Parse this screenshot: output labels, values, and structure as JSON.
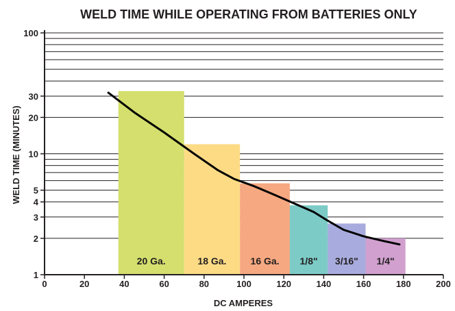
{
  "chart_data": {
    "type": "bar",
    "title": "WELD TIME WHILE OPERATING FROM BATTERIES ONLY",
    "xlabel": "DC AMPERES",
    "ylabel": "WELD TIME (MINUTES)",
    "x_scale": "linear",
    "y_scale": "log",
    "xlim": [
      0,
      200
    ],
    "ylim": [
      1,
      100
    ],
    "x_ticks": [
      0,
      20,
      40,
      60,
      80,
      100,
      120,
      140,
      160,
      180,
      200
    ],
    "y_ticks": [
      1,
      2,
      3,
      4,
      5,
      10,
      20,
      30,
      100
    ],
    "y_gridlines": [
      2,
      3,
      4,
      5,
      6,
      7,
      8,
      9,
      10,
      20,
      30,
      40,
      50,
      60,
      70,
      80,
      90,
      100
    ],
    "bars": [
      {
        "label": "20 Ga.",
        "x_start": 37,
        "x_end": 70,
        "value": 33,
        "color": "#d4df6e"
      },
      {
        "label": "18 Ga.",
        "x_start": 70,
        "x_end": 98,
        "value": 12,
        "color": "#fddb85"
      },
      {
        "label": "16 Ga.",
        "x_start": 98,
        "x_end": 123,
        "value": 5.7,
        "color": "#f6a880"
      },
      {
        "label": "1/8\"",
        "x_start": 123,
        "x_end": 142,
        "value": 3.75,
        "color": "#7ccbc6"
      },
      {
        "label": "3/16\"",
        "x_start": 142,
        "x_end": 161,
        "value": 2.65,
        "color": "#a8abdd"
      },
      {
        "label": "1/4\"",
        "x_start": 161,
        "x_end": 181,
        "value": 2.0,
        "color": "#d1a0cf"
      }
    ],
    "series": [
      {
        "type": "line",
        "points": [
          {
            "x": 32,
            "y": 32
          },
          {
            "x": 45,
            "y": 22
          },
          {
            "x": 60,
            "y": 15
          },
          {
            "x": 75,
            "y": 10
          },
          {
            "x": 87,
            "y": 7.3
          },
          {
            "x": 95,
            "y": 6.2
          },
          {
            "x": 105,
            "y": 5.4
          },
          {
            "x": 115,
            "y": 4.6
          },
          {
            "x": 125,
            "y": 3.9
          },
          {
            "x": 135,
            "y": 3.3
          },
          {
            "x": 142,
            "y": 2.8
          },
          {
            "x": 150,
            "y": 2.35
          },
          {
            "x": 160,
            "y": 2.08
          },
          {
            "x": 170,
            "y": 1.9
          },
          {
            "x": 178,
            "y": 1.78
          }
        ]
      }
    ],
    "grid": true,
    "legend": "none"
  },
  "colors": {
    "grid": "#231f20",
    "axis": "#231f20",
    "line": "#000000",
    "text": "#231f20"
  }
}
